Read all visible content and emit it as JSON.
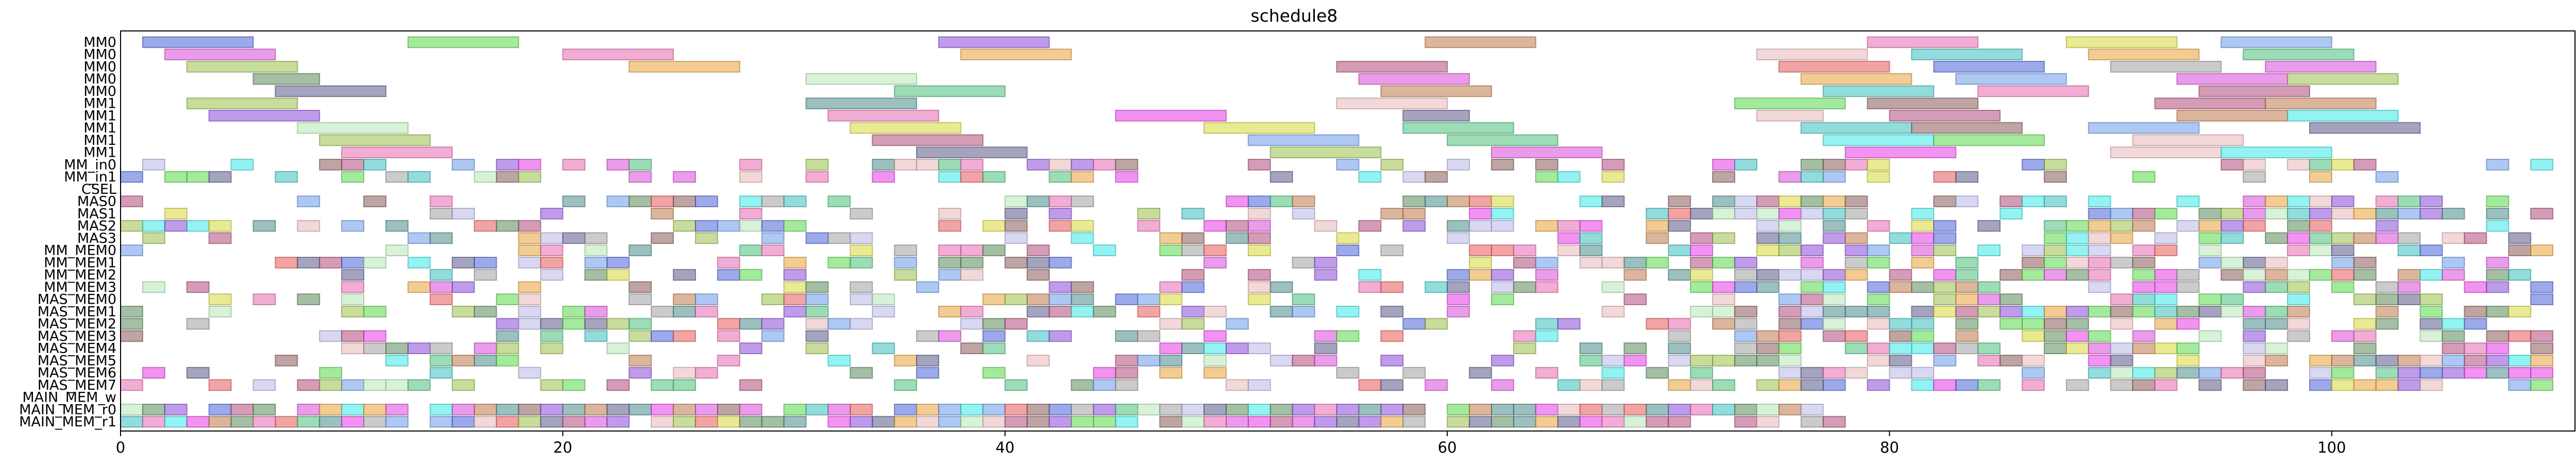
{
  "chart_data": {
    "type": "gantt",
    "title": "schedule8",
    "xlabel": "",
    "ylabel": "",
    "xlim": [
      0,
      111
    ],
    "xticks": [
      0,
      20,
      40,
      60,
      80,
      100
    ],
    "grid": false,
    "rows": [
      "MM0",
      "MM0",
      "MM0",
      "MM0",
      "MM0",
      "MM1",
      "MM1",
      "MM1",
      "MM1",
      "MM1",
      "MM_in0",
      "MM_in1",
      "CSEL",
      "MAS0",
      "MAS1",
      "MAS2",
      "MAS3",
      "MM_MEM0",
      "MM_MEM1",
      "MM_MEM2",
      "MM_MEM3",
      "MAS_MEM0",
      "MAS_MEM1",
      "MAS_MEM2",
      "MAS_MEM3",
      "MAS_MEM4",
      "MAS_MEM5",
      "MAS_MEM6",
      "MAS_MEM7",
      "MAIN_MEM_w",
      "MAIN_MEM_r0",
      "MAIN_MEM_r1"
    ],
    "palette": [
      "#4a63d8",
      "#e85a5a",
      "#5ad84a",
      "#d84ad8",
      "#e8a23a",
      "#3ac0c0",
      "#8a4ad8",
      "#d8d83a",
      "#c07a4a",
      "#4ac07a",
      "#e86ab0",
      "#6a9ae8",
      "#9ac04a",
      "#b04a7a",
      "#4a8a8a",
      "#b8b8e8",
      "#e8b8b8",
      "#b8e8b8",
      "#5a5a8a",
      "#8a5a5a",
      "#5a8a5a",
      "#3ae8e8",
      "#e83ae8",
      "#a0a0a0"
    ],
    "tasks": [
      {
        "row": 0,
        "start": 1.0,
        "end": 6.0,
        "c": 0
      },
      {
        "row": 0,
        "start": 13.0,
        "end": 18.0,
        "c": 2
      },
      {
        "row": 0,
        "start": 37.0,
        "end": 42.0,
        "c": 6
      },
      {
        "row": 0,
        "start": 59.0,
        "end": 64.0,
        "c": 8
      },
      {
        "row": 0,
        "start": 79.0,
        "end": 84.0,
        "c": 10
      },
      {
        "row": 0,
        "start": 88.0,
        "end": 93.0,
        "c": 7
      },
      {
        "row": 0,
        "start": 95.0,
        "end": 100.0,
        "c": 11
      },
      {
        "row": 1,
        "start": 2.0,
        "end": 7.0,
        "c": 3
      },
      {
        "row": 1,
        "start": 20.0,
        "end": 25.0,
        "c": 10
      },
      {
        "row": 1,
        "start": 38.0,
        "end": 43.0,
        "c": 4
      },
      {
        "row": 1,
        "start": 74.0,
        "end": 79.0,
        "c": 16
      },
      {
        "row": 1,
        "start": 81.0,
        "end": 86.0,
        "c": 5
      },
      {
        "row": 1,
        "start": 89.0,
        "end": 94.0,
        "c": 4
      },
      {
        "row": 1,
        "start": 96.0,
        "end": 101.0,
        "c": 9
      },
      {
        "row": 2,
        "start": 3.0,
        "end": 8.0,
        "c": 12
      },
      {
        "row": 2,
        "start": 23.0,
        "end": 28.0,
        "c": 4
      },
      {
        "row": 2,
        "start": 55.0,
        "end": 60.0,
        "c": 13
      },
      {
        "row": 2,
        "start": 75.0,
        "end": 80.0,
        "c": 1
      },
      {
        "row": 2,
        "start": 82.0,
        "end": 87.0,
        "c": 0
      },
      {
        "row": 2,
        "start": 90.0,
        "end": 95.0,
        "c": 23
      },
      {
        "row": 2,
        "start": 97.0,
        "end": 102.0,
        "c": 3
      },
      {
        "row": 3,
        "start": 6.0,
        "end": 9.0,
        "c": 20
      },
      {
        "row": 3,
        "start": 31.0,
        "end": 36.0,
        "c": 17
      },
      {
        "row": 3,
        "start": 56.0,
        "end": 61.0,
        "c": 3
      },
      {
        "row": 3,
        "start": 76.0,
        "end": 81.0,
        "c": 4
      },
      {
        "row": 3,
        "start": 83.0,
        "end": 88.0,
        "c": 11
      },
      {
        "row": 3,
        "start": 93.0,
        "end": 98.0,
        "c": 3
      },
      {
        "row": 3,
        "start": 98.0,
        "end": 103.0,
        "c": 12
      },
      {
        "row": 4,
        "start": 7.0,
        "end": 12.0,
        "c": 18
      },
      {
        "row": 4,
        "start": 35.0,
        "end": 40.0,
        "c": 9
      },
      {
        "row": 4,
        "start": 57.0,
        "end": 62.0,
        "c": 8
      },
      {
        "row": 4,
        "start": 77.0,
        "end": 82.0,
        "c": 5
      },
      {
        "row": 4,
        "start": 84.0,
        "end": 89.0,
        "c": 10
      },
      {
        "row": 4,
        "start": 94.0,
        "end": 99.0,
        "c": 13
      },
      {
        "row": 5,
        "start": 3.0,
        "end": 8.0,
        "c": 12
      },
      {
        "row": 5,
        "start": 31.0,
        "end": 36.0,
        "c": 14
      },
      {
        "row": 5,
        "start": 55.0,
        "end": 60.0,
        "c": 16
      },
      {
        "row": 5,
        "start": 73.0,
        "end": 78.0,
        "c": 2
      },
      {
        "row": 5,
        "start": 79.0,
        "end": 84.0,
        "c": 19
      },
      {
        "row": 5,
        "start": 92.0,
        "end": 97.0,
        "c": 13
      },
      {
        "row": 5,
        "start": 97.0,
        "end": 102.0,
        "c": 8
      },
      {
        "row": 6,
        "start": 4.0,
        "end": 9.0,
        "c": 6
      },
      {
        "row": 6,
        "start": 32.0,
        "end": 37.0,
        "c": 10
      },
      {
        "row": 6,
        "start": 45.0,
        "end": 50.0,
        "c": 22
      },
      {
        "row": 6,
        "start": 58.0,
        "end": 61.0,
        "c": 18
      },
      {
        "row": 6,
        "start": 74.0,
        "end": 77.0,
        "c": 16
      },
      {
        "row": 6,
        "start": 80.0,
        "end": 85.0,
        "c": 13
      },
      {
        "row": 6,
        "start": 93.0,
        "end": 98.0,
        "c": 8
      },
      {
        "row": 6,
        "start": 98.0,
        "end": 103.0,
        "c": 21
      },
      {
        "row": 7,
        "start": 8.0,
        "end": 13.0,
        "c": 17
      },
      {
        "row": 7,
        "start": 33.0,
        "end": 38.0,
        "c": 7
      },
      {
        "row": 7,
        "start": 49.0,
        "end": 54.0,
        "c": 7
      },
      {
        "row": 7,
        "start": 58.0,
        "end": 63.0,
        "c": 9
      },
      {
        "row": 7,
        "start": 76.0,
        "end": 81.0,
        "c": 5
      },
      {
        "row": 7,
        "start": 81.0,
        "end": 86.0,
        "c": 19
      },
      {
        "row": 7,
        "start": 89.0,
        "end": 94.0,
        "c": 11
      },
      {
        "row": 7,
        "start": 99.0,
        "end": 104.0,
        "c": 18
      },
      {
        "row": 8,
        "start": 9.0,
        "end": 14.0,
        "c": 12
      },
      {
        "row": 8,
        "start": 34.0,
        "end": 39.0,
        "c": 13
      },
      {
        "row": 8,
        "start": 51.0,
        "end": 56.0,
        "c": 11
      },
      {
        "row": 8,
        "start": 60.0,
        "end": 65.0,
        "c": 9
      },
      {
        "row": 8,
        "start": 77.0,
        "end": 82.0,
        "c": 21
      },
      {
        "row": 8,
        "start": 82.0,
        "end": 87.0,
        "c": 2
      },
      {
        "row": 8,
        "start": 91.0,
        "end": 96.0,
        "c": 16
      },
      {
        "row": 9,
        "start": 10.0,
        "end": 15.0,
        "c": 10
      },
      {
        "row": 9,
        "start": 36.0,
        "end": 41.0,
        "c": 18
      },
      {
        "row": 9,
        "start": 52.0,
        "end": 57.0,
        "c": 12
      },
      {
        "row": 9,
        "start": 62.0,
        "end": 67.0,
        "c": 3
      },
      {
        "row": 9,
        "start": 78.0,
        "end": 83.0,
        "c": 22
      },
      {
        "row": 9,
        "start": 90.0,
        "end": 95.0,
        "c": 16
      },
      {
        "row": 9,
        "start": 95.0,
        "end": 100.0,
        "c": 21
      }
    ],
    "grid_rows": {
      "first_row": 10,
      "last_row": 31,
      "first_col": 0,
      "last_col": 110
    }
  }
}
